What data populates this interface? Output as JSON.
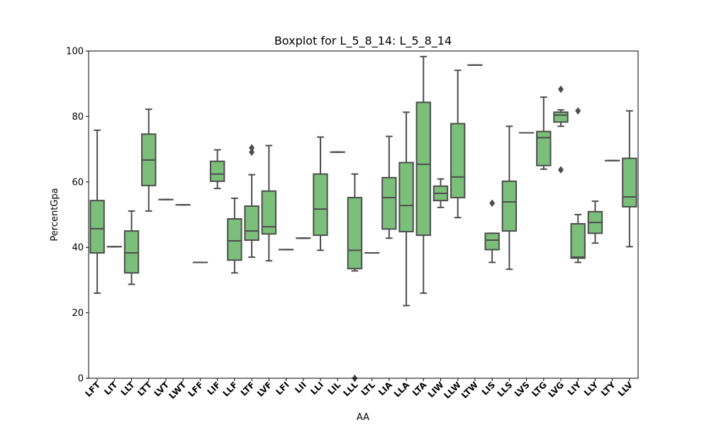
{
  "chart_data": {
    "type": "boxplot",
    "title": "Boxplot for L_5_8_14: L_5_8_14",
    "xlabel": "AA",
    "ylabel": "PercentGpa",
    "ylim": [
      0,
      100
    ],
    "yticks": [
      0,
      20,
      40,
      60,
      80,
      100
    ],
    "grid": false,
    "box_color": "#7bbf7b",
    "line_color": "#4d4d4d",
    "categories": [
      "LFT",
      "LIT",
      "LLT",
      "LTT",
      "LVT",
      "LWT",
      "LFF",
      "LIF",
      "LLF",
      "LTF",
      "LVF",
      "LFI",
      "LII",
      "LLI",
      "LIL",
      "LLL",
      "LTL",
      "LIA",
      "LLA",
      "LTA",
      "LIW",
      "LLW",
      "LTW",
      "LIS",
      "LLS",
      "LVS",
      "LTG",
      "LVG",
      "LIY",
      "LLY",
      "LTY",
      "LLV"
    ],
    "boxes": [
      {
        "whislo": 26.0,
        "q1": 38.3,
        "med": 45.7,
        "q3": 54.3,
        "whishi": 75.8,
        "fliers": []
      },
      {
        "whislo": 40.2,
        "q1": 40.2,
        "med": 40.2,
        "q3": 40.2,
        "whishi": 40.2,
        "fliers": []
      },
      {
        "whislo": 28.7,
        "q1": 32.2,
        "med": 38.3,
        "q3": 45.0,
        "whishi": 51.1,
        "fliers": []
      },
      {
        "whislo": 51.1,
        "q1": 58.9,
        "med": 66.7,
        "q3": 74.6,
        "whishi": 82.2,
        "fliers": []
      },
      {
        "whislo": 54.6,
        "q1": 54.6,
        "med": 54.6,
        "q3": 54.6,
        "whishi": 54.6,
        "fliers": []
      },
      {
        "whislo": 53.0,
        "q1": 53.0,
        "med": 53.0,
        "q3": 53.0,
        "whishi": 53.0,
        "fliers": []
      },
      {
        "whislo": 35.4,
        "q1": 35.4,
        "med": 35.4,
        "q3": 35.4,
        "whishi": 35.4,
        "fliers": []
      },
      {
        "whislo": 58.0,
        "q1": 60.2,
        "med": 62.4,
        "q3": 66.3,
        "whishi": 69.8,
        "fliers": []
      },
      {
        "whislo": 32.2,
        "q1": 36.1,
        "med": 42.0,
        "q3": 48.7,
        "whishi": 55.0,
        "fliers": []
      },
      {
        "whislo": 37.0,
        "q1": 42.2,
        "med": 45.0,
        "q3": 52.6,
        "whishi": 62.2,
        "fliers": [
          69.1,
          70.4
        ]
      },
      {
        "whislo": 35.9,
        "q1": 44.1,
        "med": 46.3,
        "q3": 57.2,
        "whishi": 71.1,
        "fliers": []
      },
      {
        "whislo": 39.3,
        "q1": 39.3,
        "med": 39.3,
        "q3": 39.3,
        "whishi": 39.3,
        "fliers": []
      },
      {
        "whislo": 42.8,
        "q1": 42.8,
        "med": 42.8,
        "q3": 42.8,
        "whishi": 42.8,
        "fliers": []
      },
      {
        "whislo": 39.1,
        "q1": 43.7,
        "med": 51.7,
        "q3": 62.4,
        "whishi": 73.7,
        "fliers": []
      },
      {
        "whislo": 69.1,
        "q1": 69.1,
        "med": 69.1,
        "q3": 69.1,
        "whishi": 69.1,
        "fliers": []
      },
      {
        "whislo": 32.8,
        "q1": 33.5,
        "med": 39.1,
        "q3": 55.2,
        "whishi": 62.4,
        "fliers": [
          0.0
        ]
      },
      {
        "whislo": 38.3,
        "q1": 38.3,
        "med": 38.3,
        "q3": 38.3,
        "whishi": 38.3,
        "fliers": []
      },
      {
        "whislo": 42.8,
        "q1": 45.6,
        "med": 55.2,
        "q3": 61.3,
        "whishi": 73.9,
        "fliers": []
      },
      {
        "whislo": 22.2,
        "q1": 44.8,
        "med": 52.8,
        "q3": 65.9,
        "whishi": 81.3,
        "fliers": []
      },
      {
        "whislo": 26.0,
        "q1": 43.7,
        "med": 65.4,
        "q3": 84.3,
        "whishi": 98.3,
        "fliers": []
      },
      {
        "whislo": 52.2,
        "q1": 54.3,
        "med": 56.5,
        "q3": 58.7,
        "whishi": 60.9,
        "fliers": []
      },
      {
        "whislo": 49.1,
        "q1": 55.2,
        "med": 61.5,
        "q3": 77.8,
        "whishi": 94.1,
        "fliers": []
      },
      {
        "whislo": 95.7,
        "q1": 95.7,
        "med": 95.7,
        "q3": 95.7,
        "whishi": 95.7,
        "fliers": []
      },
      {
        "whislo": 35.4,
        "q1": 39.3,
        "med": 42.2,
        "q3": 44.3,
        "whishi": 44.3,
        "fliers": [
          53.5
        ]
      },
      {
        "whislo": 33.3,
        "q1": 45.0,
        "med": 53.9,
        "q3": 60.2,
        "whishi": 77.0,
        "fliers": []
      },
      {
        "whislo": 75.0,
        "q1": 75.0,
        "med": 75.0,
        "q3": 75.0,
        "whishi": 75.0,
        "fliers": []
      },
      {
        "whislo": 63.9,
        "q1": 65.0,
        "med": 73.5,
        "q3": 75.4,
        "whishi": 85.9,
        "fliers": []
      },
      {
        "whislo": 77.0,
        "q1": 78.3,
        "med": 80.4,
        "q3": 81.3,
        "whishi": 82.0,
        "fliers": [
          63.7,
          88.3
        ]
      },
      {
        "whislo": 35.4,
        "q1": 36.7,
        "med": 37.0,
        "q3": 47.2,
        "whishi": 50.0,
        "fliers": [
          81.7
        ]
      },
      {
        "whislo": 41.3,
        "q1": 44.3,
        "med": 47.6,
        "q3": 50.9,
        "whishi": 54.1,
        "fliers": []
      },
      {
        "whislo": 66.5,
        "q1": 66.5,
        "med": 66.5,
        "q3": 66.5,
        "whishi": 66.5,
        "fliers": []
      },
      {
        "whislo": 40.2,
        "q1": 52.4,
        "med": 55.4,
        "q3": 67.2,
        "whishi": 81.7,
        "fliers": []
      }
    ]
  }
}
